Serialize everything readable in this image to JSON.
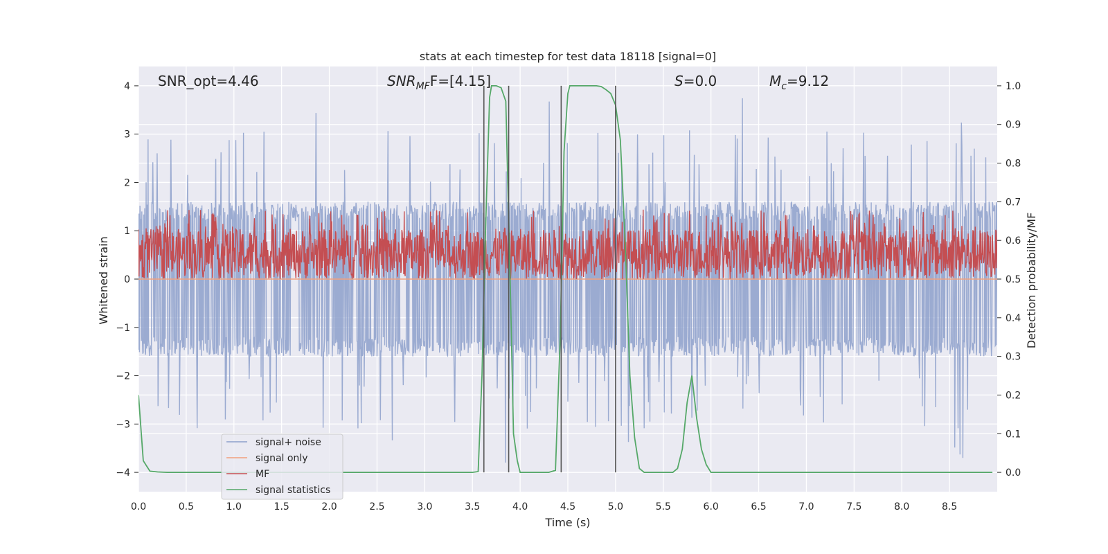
{
  "chart_data": {
    "type": "line",
    "title": "stats at each timestep for test data 18118 [signal=0]",
    "xlabel": "Time (s)",
    "ylabel": "Whitened strain",
    "y2label": "Detection probability/MF",
    "xlim": [
      0.0,
      9.0
    ],
    "ylim": [
      -4.4,
      4.4
    ],
    "y2lim": [
      -0.05,
      1.05
    ],
    "grid": true,
    "xticks": [
      "0.0",
      "0.5",
      "1.0",
      "1.5",
      "2.0",
      "2.5",
      "3.0",
      "3.5",
      "4.0",
      "4.5",
      "5.0",
      "5.5",
      "6.0",
      "6.5",
      "7.0",
      "7.5",
      "8.0",
      "8.5"
    ],
    "yticks": [
      "4",
      "3",
      "2",
      "1",
      "0",
      "−1",
      "−2",
      "−3",
      "−4"
    ],
    "y2ticks": [
      "1.0",
      "0.9",
      "0.8",
      "0.7",
      "0.6",
      "0.5",
      "0.4",
      "0.3",
      "0.2",
      "0.1",
      "0.0"
    ],
    "annotations": {
      "snr_opt": "SNR_opt=4.46",
      "snr_mf_base": "SNR",
      "snr_mf_sub": "MF",
      "snr_mf_rest": "F=[4.15]",
      "s_italic": "S",
      "s_rest": "=0.0",
      "mc_base": "M",
      "mc_sub": "c",
      "mc_rest": "=9.12"
    },
    "legend": {
      "position": "lower-left",
      "entries": [
        "signal+ noise",
        "signal only",
        "MF",
        "signal statistics"
      ]
    },
    "vertical_lines": [
      3.62,
      3.88,
      4.43,
      5.0
    ],
    "series": [
      {
        "name": "signal+ noise",
        "color": "#8da0cb",
        "axis": "left",
        "kind": "noise",
        "spread_low": -1.6,
        "spread_high": 1.6,
        "max_peak": 3.95,
        "min_peak": -4.0
      },
      {
        "name": "signal only",
        "color": "#f1a07d",
        "axis": "left",
        "kind": "flat",
        "values": [
          0,
          0
        ]
      },
      {
        "name": "MF",
        "color": "#c44e52",
        "axis": "right",
        "kind": "noise",
        "center": 0.55,
        "spread_low": 0.5,
        "spread_high": 0.63
      },
      {
        "name": "signal statistics",
        "color": "#55a868",
        "axis": "right",
        "kind": "line",
        "x": [
          0.0,
          0.05,
          0.12,
          0.2,
          0.3,
          0.5,
          1.0,
          2.0,
          3.0,
          3.5,
          3.56,
          3.6,
          3.64,
          3.68,
          3.7,
          3.75,
          3.8,
          3.85,
          3.9,
          3.93,
          3.97,
          4.0,
          4.05,
          4.2,
          4.3,
          4.37,
          4.42,
          4.46,
          4.5,
          4.52,
          4.6,
          4.7,
          4.8,
          4.85,
          4.9,
          4.95,
          5.0,
          5.05,
          5.1,
          5.15,
          5.2,
          5.25,
          5.3,
          5.4,
          5.5,
          5.6,
          5.65,
          5.7,
          5.75,
          5.8,
          5.85,
          5.9,
          5.95,
          6.0,
          6.1,
          6.5,
          7.0,
          8.0,
          8.95
        ],
        "y": [
          0.2,
          0.03,
          0.003,
          0.001,
          0.0,
          0.0,
          0.0,
          0.0,
          0.0,
          0.0,
          0.002,
          0.25,
          0.65,
          0.97,
          1.0,
          1.0,
          0.995,
          0.96,
          0.45,
          0.1,
          0.03,
          0.0,
          0.0,
          0.0,
          0.0,
          0.005,
          0.35,
          0.83,
          0.98,
          1.0,
          1.0,
          1.0,
          1.0,
          0.998,
          0.99,
          0.98,
          0.95,
          0.86,
          0.6,
          0.25,
          0.09,
          0.01,
          0.0,
          0.0,
          0.0,
          0.0,
          0.01,
          0.06,
          0.18,
          0.25,
          0.14,
          0.06,
          0.02,
          0.0,
          0.0,
          0.0,
          0.0,
          0.0,
          0.0
        ]
      }
    ]
  }
}
